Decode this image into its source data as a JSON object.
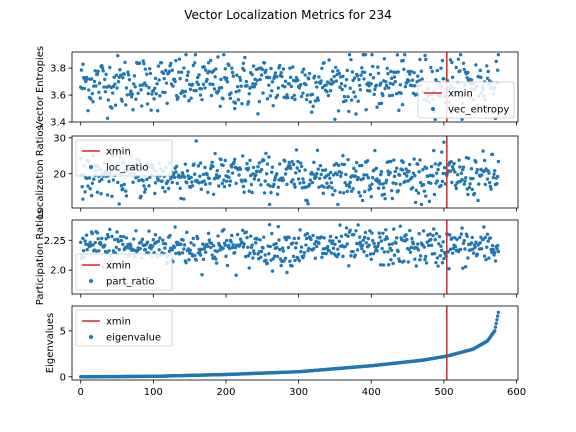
{
  "chart_data": {
    "type": "scatter",
    "title": "Vector Localization Metrics for 234",
    "n_points": 576,
    "xlim": [
      -12,
      602
    ],
    "x_ticks": [
      0,
      100,
      200,
      300,
      400,
      500,
      600
    ],
    "xmin_value": 504,
    "colors": {
      "points": "#1f77b4",
      "xmin_line": "#d62728"
    },
    "legend_xmin_label": "xmin",
    "panels": [
      {
        "series_name": "vec_entropy",
        "ylabel": "Vector Entropies",
        "ylim": [
          3.4,
          3.92
        ],
        "y_ticks": [
          3.4,
          3.6,
          3.8
        ],
        "legend_position": "lower right",
        "pattern": {
          "type": "noise",
          "mean": 3.69,
          "spread": 0.1,
          "min": 3.42,
          "max": 3.9
        }
      },
      {
        "series_name": "loc_ratio",
        "ylabel": "Localization Ratios",
        "ylim": [
          10.5,
          30.5
        ],
        "y_ticks": [
          20,
          30
        ],
        "legend_position": "upper left",
        "pattern": {
          "type": "noise",
          "mean": 19.3,
          "spread": 3.0,
          "min": 11.5,
          "max": 30.0
        }
      },
      {
        "series_name": "part_ratio",
        "ylabel": "Participation Ratios",
        "ylim": [
          1.8,
          2.42
        ],
        "y_ticks": [
          2.0,
          2.25
        ],
        "legend_position": "lower left",
        "pattern": {
          "type": "noise",
          "mean": 2.19,
          "spread": 0.08,
          "min": 1.82,
          "max": 2.4
        }
      },
      {
        "series_name": "eigenvalue",
        "ylabel": "Eigenvalues",
        "ylim": [
          -0.35,
          7.7
        ],
        "y_ticks": [
          0,
          5
        ],
        "legend_position": "upper left",
        "pattern": {
          "type": "sorted-curve",
          "knots": [
            [
              0,
              0.0
            ],
            [
              100,
              0.05
            ],
            [
              200,
              0.25
            ],
            [
              300,
              0.55
            ],
            [
              400,
              1.2
            ],
            [
              470,
              1.8
            ],
            [
              504,
              2.25
            ],
            [
              540,
              3.0
            ],
            [
              560,
              3.9
            ],
            [
              570,
              5.0
            ],
            [
              575,
              7.0
            ]
          ]
        }
      }
    ]
  }
}
